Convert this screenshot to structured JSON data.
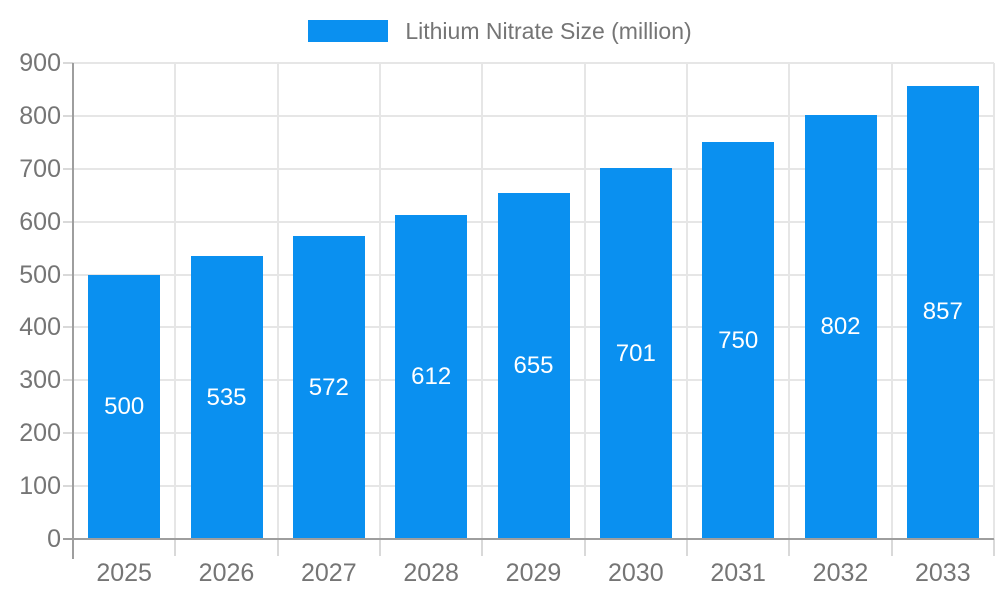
{
  "legend": {
    "label": "Lithium Nitrate Size (million)"
  },
  "chart_data": {
    "type": "bar",
    "title": "",
    "series_name": "Lithium Nitrate Size (million)",
    "categories": [
      "2025",
      "2026",
      "2027",
      "2028",
      "2029",
      "2030",
      "2031",
      "2032",
      "2033"
    ],
    "values": [
      500,
      535,
      572,
      612,
      655,
      701,
      750,
      802,
      857
    ],
    "xlabel": "",
    "ylabel": "",
    "ylim": [
      0,
      900
    ],
    "ytick_step": 100,
    "grid": true,
    "legend_position": "top-center",
    "value_labels": "inside-center",
    "colors": {
      "bar": "#0a90f0",
      "value_label": "#ffffff",
      "axis": "#9e9e9e",
      "grid": "#e6e6e6",
      "tick": "#d9d9d9",
      "axis_label": "#757575"
    }
  }
}
